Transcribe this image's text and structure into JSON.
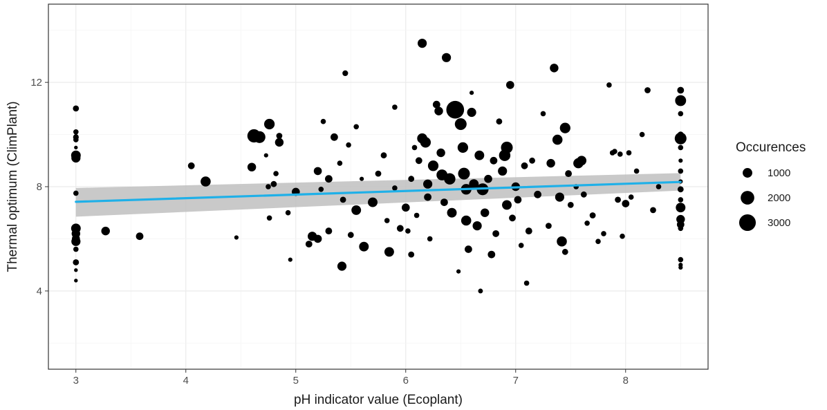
{
  "chart_data": {
    "type": "scatter",
    "xlabel": "pH indicator value (Ecoplant)",
    "ylabel": "Thermal optimum (ClimPlant)",
    "xlim": [
      2.75,
      8.75
    ],
    "ylim": [
      1.0,
      15.0
    ],
    "x_ticks": [
      3,
      4,
      5,
      6,
      7,
      8
    ],
    "y_ticks": [
      4,
      8,
      12
    ],
    "grid": true,
    "point_color": "#000000",
    "trend": {
      "method": "linear",
      "color": "#1fb0e8",
      "band_color": "#bfbfbf",
      "x": [
        3,
        8.5
      ],
      "y": [
        7.42,
        8.18
      ],
      "lower": [
        6.85,
        7.85
      ],
      "upper": [
        7.95,
        8.52
      ]
    },
    "legend": {
      "title": "Occurences",
      "position": "right",
      "entries": [
        {
          "label": "1000",
          "size": 1000
        },
        {
          "label": "2000",
          "size": 2000
        },
        {
          "label": "3000",
          "size": 3000
        }
      ]
    },
    "points": [
      [
        3,
        11.0,
        400
      ],
      [
        3,
        10.1,
        300
      ],
      [
        3,
        9.9,
        350
      ],
      [
        3,
        9.8,
        300
      ],
      [
        3,
        9.5,
        150
      ],
      [
        3,
        9.2,
        1000
      ],
      [
        3,
        9.1,
        900
      ],
      [
        3,
        7.75,
        300
      ],
      [
        3,
        6.4,
        1000
      ],
      [
        3,
        6.2,
        800
      ],
      [
        3,
        6.0,
        700
      ],
      [
        3,
        5.9,
        900
      ],
      [
        3,
        5.6,
        300
      ],
      [
        3,
        5.1,
        400
      ],
      [
        3,
        4.8,
        150
      ],
      [
        3,
        4.4,
        150
      ],
      [
        3.27,
        6.3,
        800
      ],
      [
        3.58,
        6.1,
        600
      ],
      [
        4.05,
        8.8,
        500
      ],
      [
        4.18,
        8.2,
        1100
      ],
      [
        4.46,
        6.05,
        200
      ],
      [
        4.6,
        8.75,
        800
      ],
      [
        4.62,
        9.95,
        1900
      ],
      [
        4.67,
        9.9,
        1500
      ],
      [
        4.73,
        9.2,
        200
      ],
      [
        4.75,
        8.0,
        300
      ],
      [
        4.76,
        10.4,
        1200
      ],
      [
        4.8,
        8.1,
        400
      ],
      [
        4.85,
        9.95,
        400
      ],
      [
        4.85,
        9.7,
        800
      ],
      [
        4.76,
        6.8,
        300
      ],
      [
        4.82,
        8.5,
        300
      ],
      [
        4.93,
        7.0,
        300
      ],
      [
        4.95,
        5.2,
        200
      ],
      [
        5.0,
        7.8,
        700
      ],
      [
        5.12,
        5.8,
        500
      ],
      [
        5.15,
        6.1,
        900
      ],
      [
        5.2,
        6.0,
        700
      ],
      [
        5.2,
        8.6,
        700
      ],
      [
        5.23,
        7.9,
        300
      ],
      [
        5.25,
        10.5,
        300
      ],
      [
        5.3,
        8.3,
        600
      ],
      [
        5.3,
        6.3,
        500
      ],
      [
        5.35,
        9.9,
        600
      ],
      [
        5.4,
        8.9,
        300
      ],
      [
        5.45,
        12.35,
        350
      ],
      [
        5.42,
        4.95,
        900
      ],
      [
        5.43,
        7.5,
        400
      ],
      [
        5.48,
        9.6,
        300
      ],
      [
        5.5,
        6.15,
        400
      ],
      [
        5.55,
        10.3,
        300
      ],
      [
        5.55,
        7.1,
        1000
      ],
      [
        5.6,
        8.3,
        200
      ],
      [
        5.62,
        5.7,
        1000
      ],
      [
        5.7,
        7.4,
        1000
      ],
      [
        5.75,
        8.5,
        400
      ],
      [
        5.8,
        9.2,
        400
      ],
      [
        5.83,
        6.7,
        300
      ],
      [
        5.85,
        5.5,
        1000
      ],
      [
        5.9,
        11.05,
        300
      ],
      [
        5.9,
        7.95,
        300
      ],
      [
        5.95,
        6.4,
        500
      ],
      [
        6.0,
        7.2,
        700
      ],
      [
        6.02,
        6.3,
        300
      ],
      [
        6.05,
        5.4,
        400
      ],
      [
        6.05,
        8.3,
        400
      ],
      [
        6.08,
        9.5,
        300
      ],
      [
        6.1,
        6.9,
        300
      ],
      [
        6.12,
        9.0,
        500
      ],
      [
        6.15,
        13.5,
        900
      ],
      [
        6.15,
        9.85,
        1100
      ],
      [
        6.18,
        9.7,
        1200
      ],
      [
        6.2,
        8.1,
        900
      ],
      [
        6.2,
        7.6,
        600
      ],
      [
        6.22,
        6.0,
        300
      ],
      [
        6.25,
        8.8,
        1200
      ],
      [
        6.28,
        11.15,
        600
      ],
      [
        6.3,
        10.9,
        800
      ],
      [
        6.32,
        9.3,
        800
      ],
      [
        6.33,
        8.45,
        1300
      ],
      [
        6.35,
        7.4,
        600
      ],
      [
        6.37,
        12.95,
        900
      ],
      [
        6.4,
        8.3,
        1400
      ],
      [
        6.42,
        7.0,
        1000
      ],
      [
        6.45,
        10.95,
        3400
      ],
      [
        6.48,
        4.75,
        200
      ],
      [
        6.5,
        10.4,
        1500
      ],
      [
        6.52,
        9.5,
        1200
      ],
      [
        6.53,
        8.5,
        1500
      ],
      [
        6.55,
        7.9,
        1200
      ],
      [
        6.55,
        6.7,
        1100
      ],
      [
        6.57,
        5.6,
        600
      ],
      [
        6.6,
        10.85,
        900
      ],
      [
        6.6,
        11.6,
        200
      ],
      [
        6.62,
        8.1,
        1000
      ],
      [
        6.65,
        6.5,
        900
      ],
      [
        6.67,
        9.2,
        1000
      ],
      [
        6.68,
        4.0,
        250
      ],
      [
        6.7,
        7.9,
        1500
      ],
      [
        6.72,
        7.0,
        800
      ],
      [
        6.75,
        8.3,
        700
      ],
      [
        6.78,
        5.4,
        600
      ],
      [
        6.8,
        9.0,
        600
      ],
      [
        6.82,
        6.2,
        500
      ],
      [
        6.85,
        10.5,
        400
      ],
      [
        6.88,
        8.6,
        900
      ],
      [
        6.9,
        9.2,
        1400
      ],
      [
        6.92,
        9.5,
        1500
      ],
      [
        6.92,
        7.3,
        1000
      ],
      [
        6.95,
        11.9,
        700
      ],
      [
        6.97,
        6.8,
        500
      ],
      [
        7.0,
        8.0,
        800
      ],
      [
        7.02,
        7.5,
        600
      ],
      [
        7.05,
        5.75,
        300
      ],
      [
        7.08,
        8.8,
        500
      ],
      [
        7.1,
        4.3,
        300
      ],
      [
        7.12,
        6.3,
        500
      ],
      [
        7.15,
        9.0,
        400
      ],
      [
        7.2,
        7.7,
        600
      ],
      [
        7.25,
        10.8,
        300
      ],
      [
        7.3,
        6.5,
        400
      ],
      [
        7.32,
        8.9,
        800
      ],
      [
        7.35,
        12.55,
        800
      ],
      [
        7.38,
        9.8,
        1100
      ],
      [
        7.4,
        7.6,
        900
      ],
      [
        7.42,
        5.9,
        1100
      ],
      [
        7.45,
        10.25,
        1200
      ],
      [
        7.45,
        5.5,
        400
      ],
      [
        7.48,
        8.5,
        500
      ],
      [
        7.5,
        7.3,
        400
      ],
      [
        7.55,
        8.0,
        300
      ],
      [
        7.57,
        8.9,
        1100
      ],
      [
        7.6,
        9.0,
        1000
      ],
      [
        7.62,
        7.7,
        400
      ],
      [
        7.65,
        6.6,
        300
      ],
      [
        7.7,
        6.9,
        400
      ],
      [
        7.75,
        5.9,
        300
      ],
      [
        7.8,
        6.2,
        300
      ],
      [
        7.85,
        11.9,
        300
      ],
      [
        7.88,
        9.3,
        300
      ],
      [
        7.9,
        9.35,
        300
      ],
      [
        7.93,
        7.5,
        400
      ],
      [
        7.95,
        9.25,
        300
      ],
      [
        7.97,
        6.1,
        300
      ],
      [
        8.0,
        7.35,
        600
      ],
      [
        8.03,
        9.3,
        300
      ],
      [
        8.05,
        7.6,
        300
      ],
      [
        8.1,
        8.6,
        300
      ],
      [
        8.15,
        10.0,
        300
      ],
      [
        8.2,
        11.7,
        400
      ],
      [
        8.25,
        7.1,
        400
      ],
      [
        8.3,
        8.0,
        300
      ],
      [
        8.5,
        11.7,
        500
      ],
      [
        8.5,
        11.3,
        1300
      ],
      [
        8.5,
        10.8,
        300
      ],
      [
        8.5,
        10.0,
        400
      ],
      [
        8.5,
        9.85,
        1500
      ],
      [
        8.5,
        9.5,
        300
      ],
      [
        8.5,
        9.0,
        200
      ],
      [
        8.5,
        8.6,
        300
      ],
      [
        8.5,
        8.2,
        200
      ],
      [
        8.5,
        7.9,
        400
      ],
      [
        8.5,
        7.5,
        300
      ],
      [
        8.5,
        7.2,
        1000
      ],
      [
        8.5,
        6.75,
        800
      ],
      [
        8.5,
        6.55,
        600
      ],
      [
        8.5,
        6.4,
        300
      ],
      [
        8.5,
        5.2,
        300
      ],
      [
        8.5,
        5.0,
        200
      ],
      [
        8.5,
        4.9,
        200
      ]
    ]
  }
}
